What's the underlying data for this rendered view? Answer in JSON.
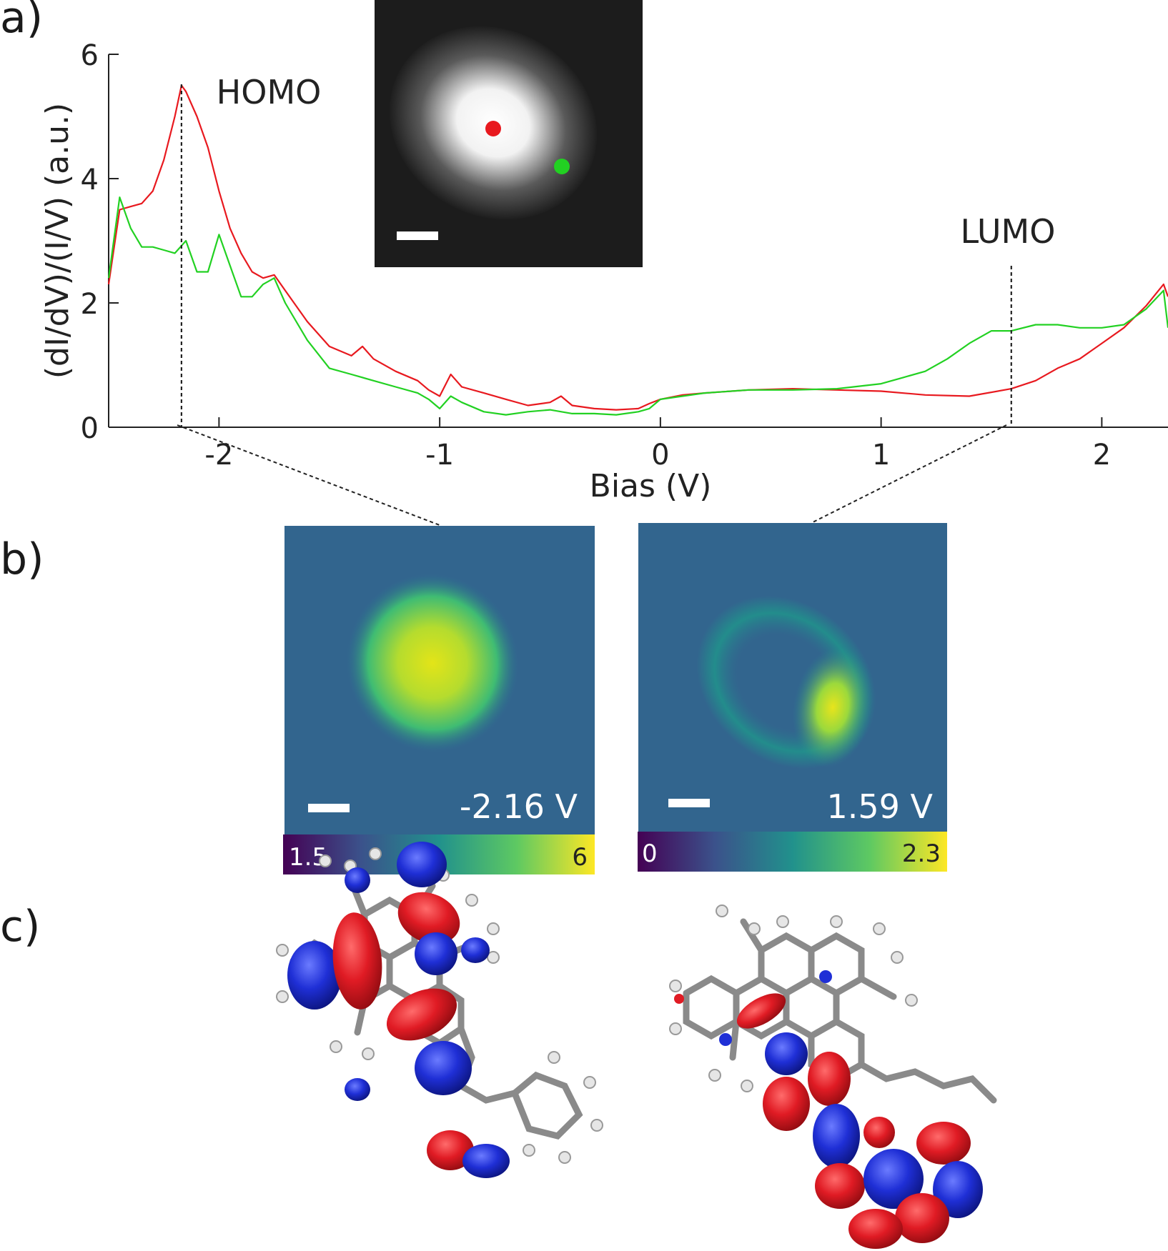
{
  "panels": {
    "a": "a)",
    "b": "b)",
    "c": "c)"
  },
  "chart_data": {
    "type": "line",
    "xlabel": "Bias (V)",
    "ylabel": "(dI/dV)/(I/V) (a.u.)",
    "xlim": [
      -2.5,
      2.3
    ],
    "ylim": [
      0,
      6
    ],
    "xticks": [
      "-2",
      "-1",
      "0",
      "1",
      "2"
    ],
    "yticks": [
      "0",
      "2",
      "4",
      "6"
    ],
    "grid": false,
    "series": [
      {
        "color": "#e8191f",
        "x": [
          -2.5,
          -2.45,
          -2.4,
          -2.35,
          -2.3,
          -2.25,
          -2.2,
          -2.17,
          -2.15,
          -2.1,
          -2.05,
          -2.0,
          -1.95,
          -1.9,
          -1.85,
          -1.8,
          -1.75,
          -1.7,
          -1.6,
          -1.5,
          -1.4,
          -1.35,
          -1.3,
          -1.2,
          -1.1,
          -1.05,
          -1.0,
          -0.95,
          -0.9,
          -0.8,
          -0.7,
          -0.6,
          -0.5,
          -0.45,
          -0.4,
          -0.3,
          -0.2,
          -0.1,
          -0.05,
          0.0,
          0.1,
          0.2,
          0.4,
          0.6,
          0.8,
          1.0,
          1.2,
          1.4,
          1.59,
          1.7,
          1.8,
          1.9,
          2.0,
          2.1,
          2.2,
          2.28,
          2.3
        ],
        "y": [
          2.3,
          3.5,
          3.55,
          3.6,
          3.8,
          4.3,
          5.0,
          5.5,
          5.4,
          5.0,
          4.5,
          3.8,
          3.2,
          2.8,
          2.5,
          2.4,
          2.45,
          2.2,
          1.7,
          1.3,
          1.15,
          1.3,
          1.1,
          0.9,
          0.75,
          0.6,
          0.5,
          0.85,
          0.65,
          0.55,
          0.45,
          0.35,
          0.4,
          0.5,
          0.35,
          0.3,
          0.28,
          0.3,
          0.38,
          0.45,
          0.52,
          0.55,
          0.6,
          0.62,
          0.6,
          0.58,
          0.52,
          0.5,
          0.62,
          0.75,
          0.95,
          1.1,
          1.35,
          1.6,
          1.95,
          2.3,
          2.1
        ]
      },
      {
        "color": "#22d122",
        "x": [
          -2.5,
          -2.45,
          -2.4,
          -2.35,
          -2.3,
          -2.25,
          -2.2,
          -2.15,
          -2.1,
          -2.05,
          -2.0,
          -1.95,
          -1.9,
          -1.85,
          -1.8,
          -1.75,
          -1.7,
          -1.6,
          -1.5,
          -1.4,
          -1.3,
          -1.2,
          -1.1,
          -1.05,
          -1.0,
          -0.95,
          -0.9,
          -0.8,
          -0.7,
          -0.6,
          -0.5,
          -0.4,
          -0.3,
          -0.2,
          -0.1,
          -0.05,
          0.0,
          0.1,
          0.2,
          0.4,
          0.6,
          0.8,
          1.0,
          1.1,
          1.2,
          1.3,
          1.4,
          1.5,
          1.59,
          1.7,
          1.8,
          1.9,
          2.0,
          2.1,
          2.2,
          2.28,
          2.3
        ],
        "y": [
          2.4,
          3.7,
          3.2,
          2.9,
          2.9,
          2.85,
          2.8,
          3.0,
          2.5,
          2.5,
          3.1,
          2.6,
          2.1,
          2.1,
          2.3,
          2.4,
          2.0,
          1.4,
          0.95,
          0.85,
          0.75,
          0.65,
          0.55,
          0.45,
          0.3,
          0.5,
          0.4,
          0.25,
          0.2,
          0.25,
          0.28,
          0.22,
          0.22,
          0.2,
          0.25,
          0.3,
          0.45,
          0.5,
          0.55,
          0.6,
          0.6,
          0.62,
          0.7,
          0.8,
          0.9,
          1.1,
          1.35,
          1.55,
          1.55,
          1.65,
          1.65,
          1.6,
          1.6,
          1.65,
          1.9,
          2.2,
          1.6
        ]
      }
    ],
    "annotations": [
      {
        "text": "HOMO",
        "x": -2.17
      },
      {
        "text": "LUMO",
        "x": 1.59
      }
    ]
  },
  "inset": {
    "markers": [
      {
        "color": "#e8191f"
      },
      {
        "color": "#22d122"
      }
    ]
  },
  "maps": [
    {
      "bias_label": "-2.16 V",
      "cbar_min": "1.5",
      "cbar_max": "6"
    },
    {
      "bias_label": "1.59 V",
      "cbar_min": "0",
      "cbar_max": "2.3"
    }
  ],
  "colors": {
    "orbital_positive": "#e01b24",
    "orbital_negative": "#1f2fd6",
    "bond": "#888888",
    "hydrogen": "#dddddd"
  }
}
